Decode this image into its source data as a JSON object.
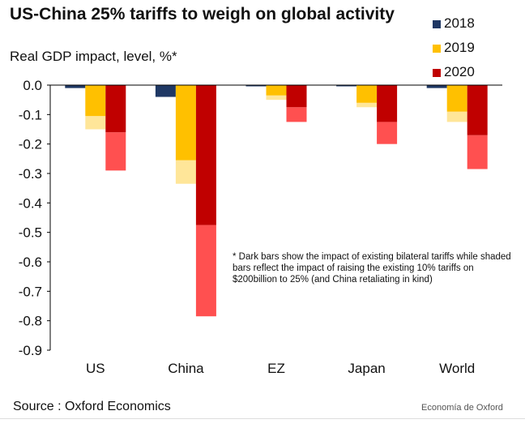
{
  "chart_data": {
    "type": "bar",
    "title": "US-China 25% tariffs to weigh on global activity",
    "subtitle": "Real GDP impact, level, %*",
    "categories": [
      "US",
      "China",
      "EZ",
      "Japan",
      "World"
    ],
    "series": [
      {
        "name": "2018",
        "dark": [
          -0.01,
          -0.04,
          -0.002,
          -0.003,
          -0.01
        ],
        "total": [
          -0.01,
          -0.04,
          -0.002,
          -0.003,
          -0.01
        ]
      },
      {
        "name": "2019",
        "dark": [
          -0.105,
          -0.255,
          -0.035,
          -0.06,
          -0.09
        ],
        "total": [
          -0.15,
          -0.335,
          -0.05,
          -0.075,
          -0.125
        ]
      },
      {
        "name": "2020",
        "dark": [
          -0.16,
          -0.475,
          -0.075,
          -0.125,
          -0.17
        ],
        "total": [
          -0.29,
          -0.785,
          -0.125,
          -0.2,
          -0.285
        ]
      }
    ],
    "ylim": [
      -0.9,
      0.0
    ],
    "yticks": [
      "0.0",
      "-0.1",
      "-0.2",
      "-0.3",
      "-0.4",
      "-0.5",
      "-0.6",
      "-0.7",
      "-0.8",
      "-0.9"
    ],
    "legend_position": "top-right",
    "note": "* Dark bars show the impact of existing bilateral tariffs while shaded bars reflect the impact of raising the existing 10% tariffs on $200billion to 25% (and China retaliating in kind)",
    "source": "Source : Oxford Economics",
    "watermark": "Economía de Oxford",
    "colors": {
      "2018": {
        "dark": "#1f3864",
        "light": "#1f3864"
      },
      "2019": {
        "dark": "#ffc000",
        "light": "#ffe699"
      },
      "2020": {
        "dark": "#c00000",
        "light": "#ff5050"
      }
    }
  }
}
